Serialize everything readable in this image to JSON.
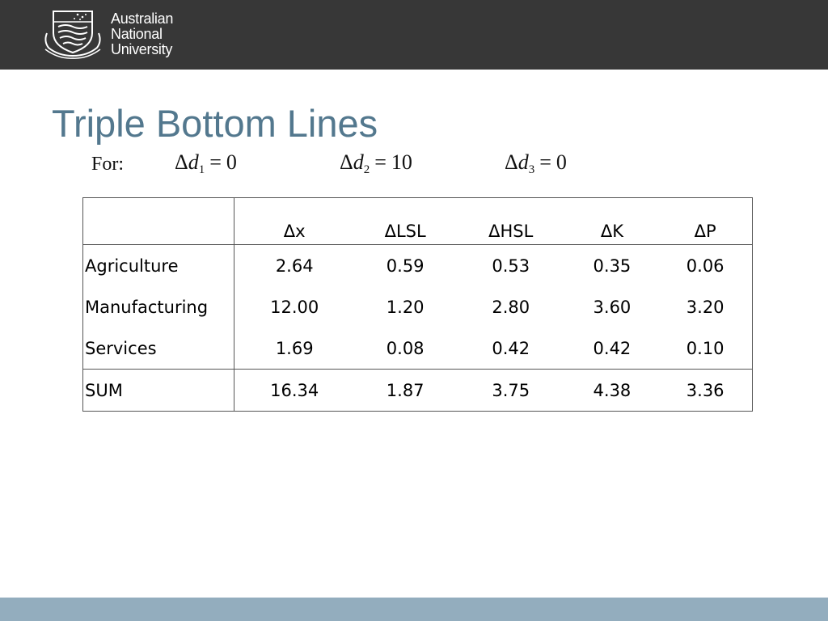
{
  "header": {
    "logo_icon": "anu-crest-icon",
    "university_name_lines": [
      "Australian",
      "National",
      "University"
    ],
    "background_color": "#373737"
  },
  "slide": {
    "title": "Triple Bottom Lines",
    "title_color": "#53788e",
    "for_label": "For:",
    "conditions": [
      {
        "symbol": "Δ",
        "var": "d",
        "sub": "1",
        "eq": "=",
        "value": "0"
      },
      {
        "symbol": "Δ",
        "var": "d",
        "sub": "2",
        "eq": "=",
        "value": "10"
      },
      {
        "symbol": "Δ",
        "var": "d",
        "sub": "3",
        "eq": "=",
        "value": "0"
      }
    ]
  },
  "table": {
    "columns": [
      "",
      "Δx",
      "ΔLSL",
      "ΔHSL",
      "ΔK",
      "ΔP"
    ],
    "rows": [
      {
        "label": "Agriculture",
        "values": [
          "2.64",
          "0.59",
          "0.53",
          "0.35",
          "0.06"
        ]
      },
      {
        "label": "Manufacturing",
        "values": [
          "12.00",
          "1.20",
          "2.80",
          "3.60",
          "3.20"
        ]
      },
      {
        "label": "Services",
        "values": [
          "1.69",
          "0.08",
          "0.42",
          "0.42",
          "0.10"
        ]
      }
    ],
    "sum_row": {
      "label": "SUM",
      "values": [
        "16.34",
        "1.87",
        "3.75",
        "4.38",
        "3.36"
      ]
    }
  },
  "footer": {
    "color": "#93adbe"
  }
}
